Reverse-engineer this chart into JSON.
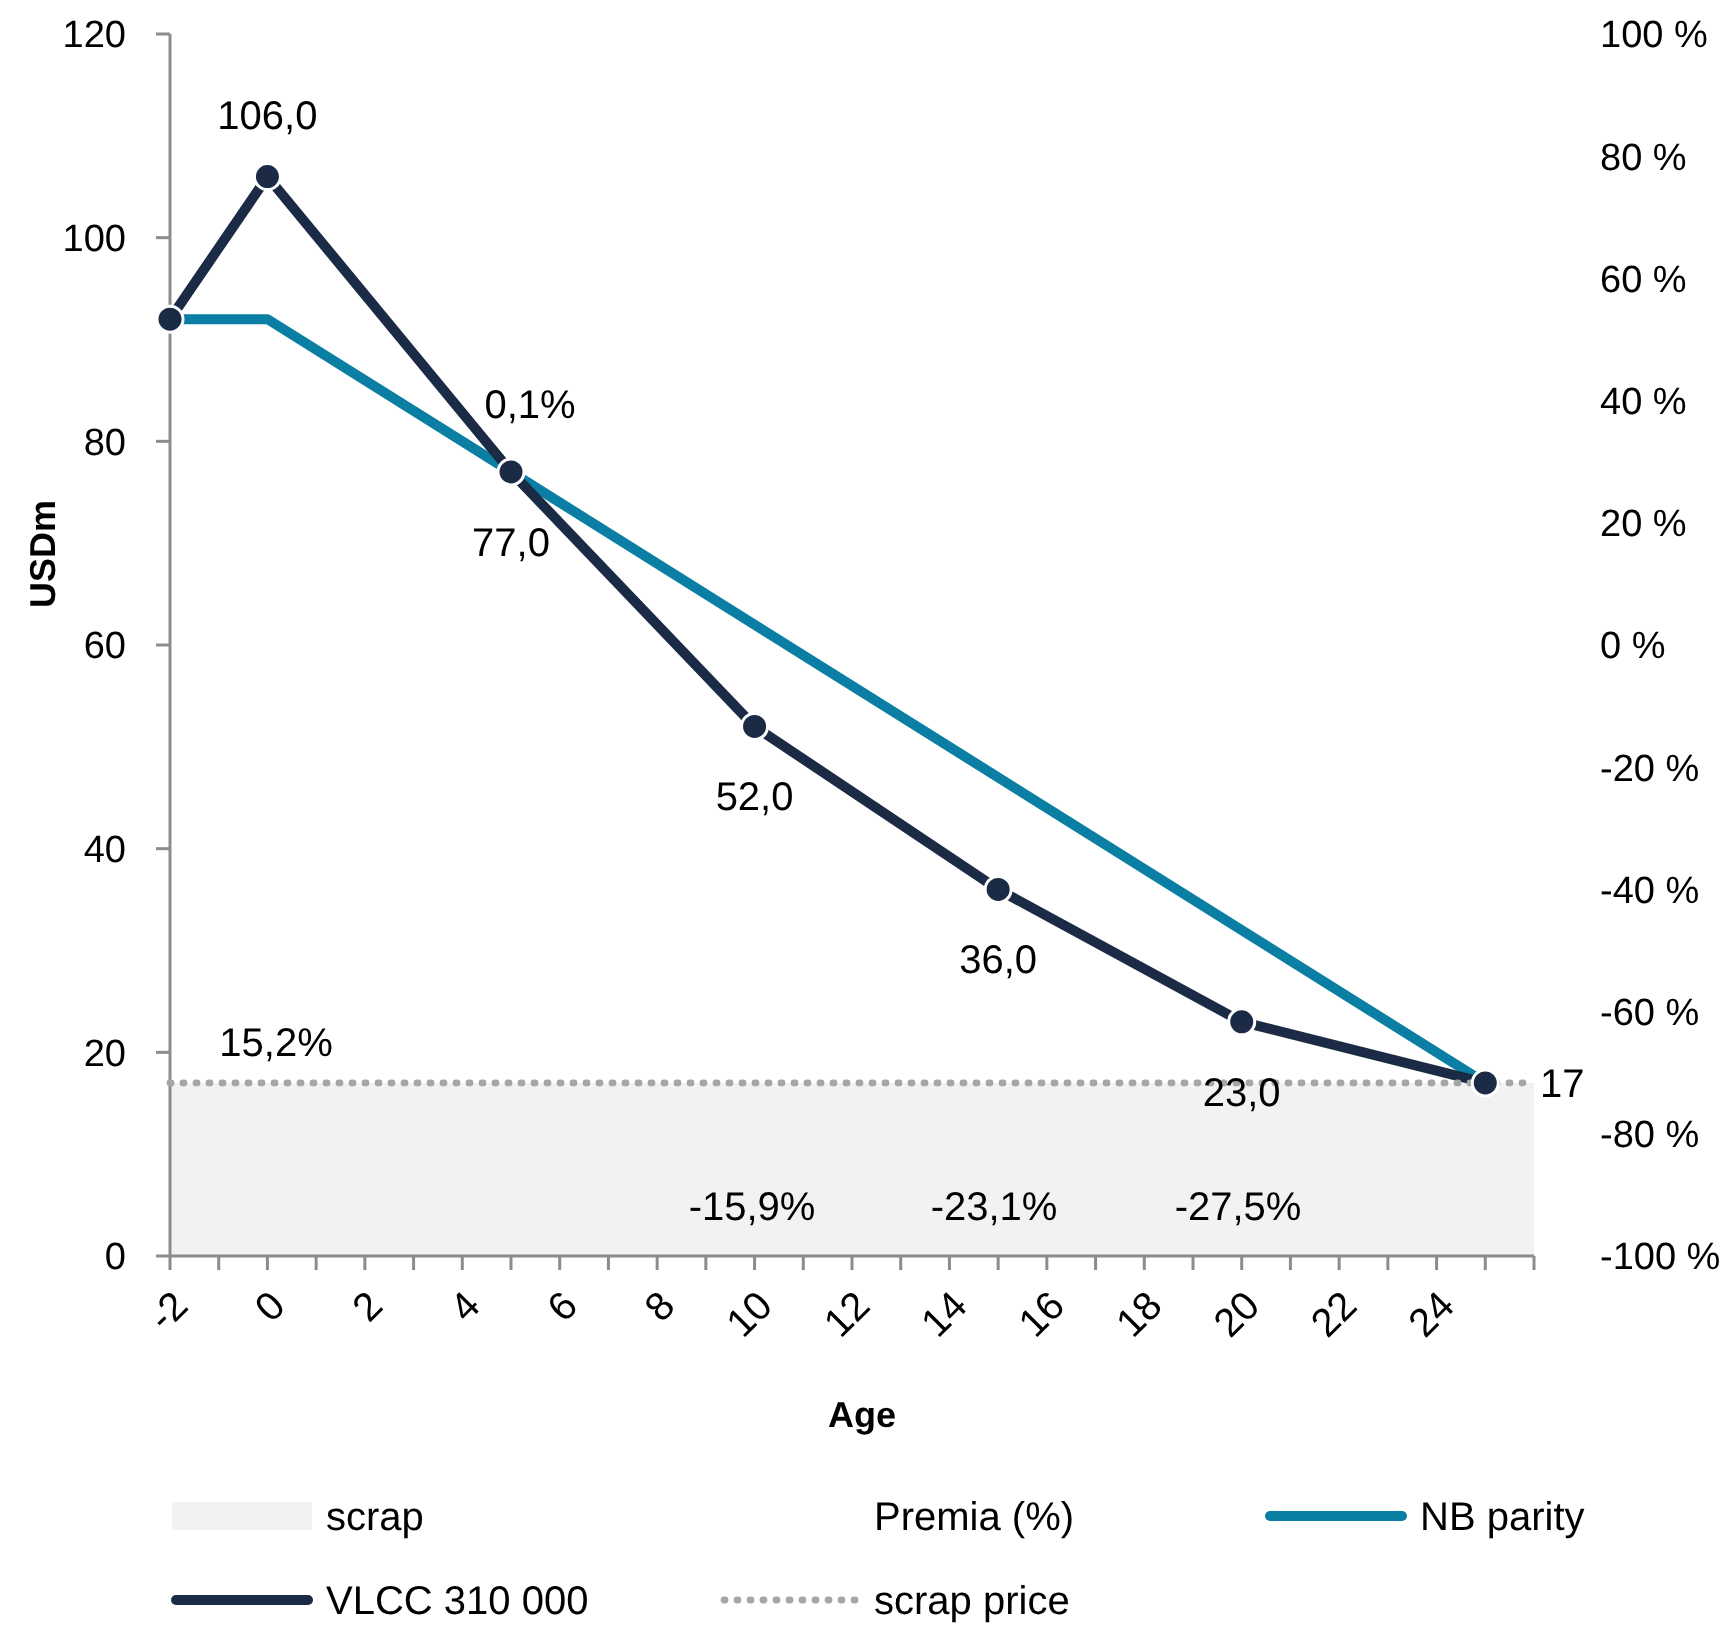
{
  "chart_data": {
    "type": "line",
    "xlabel": "Age",
    "ylabel": "USDm",
    "xlim": [
      -2,
      26
    ],
    "xticks": [
      -2,
      {
        "value": -1,
        "label": null
      },
      0,
      {
        "value": 1,
        "label": null
      },
      2,
      {
        "value": 3,
        "label": null
      },
      4,
      {
        "value": 5,
        "label": null
      },
      6,
      {
        "value": 7,
        "label": null
      },
      8,
      {
        "value": 9,
        "label": null
      },
      10,
      {
        "value": 11,
        "label": null
      },
      12,
      {
        "value": 13,
        "label": null
      },
      14,
      {
        "value": 15,
        "label": null
      },
      16,
      {
        "value": 17,
        "label": null
      },
      18,
      {
        "value": 19,
        "label": null
      },
      20,
      {
        "value": 21,
        "label": null
      },
      22,
      {
        "value": 23,
        "label": null
      },
      24,
      {
        "value": 25,
        "label": null
      },
      {
        "value": 26,
        "label": null
      }
    ],
    "ylim": [
      0,
      120
    ],
    "yticks": [
      0,
      20,
      40,
      60,
      80,
      100,
      120
    ],
    "y2lim": [
      -100,
      100
    ],
    "y2ticks": [
      {
        "value": -100,
        "label": "-100 %"
      },
      {
        "value": -80,
        "label": "-80 %"
      },
      {
        "value": -60,
        "label": "-60 %"
      },
      {
        "value": -40,
        "label": "-40 %"
      },
      {
        "value": -20,
        "label": "-20 %"
      },
      {
        "value": 0,
        "label": "0 %"
      },
      {
        "value": 20,
        "label": "20 %"
      },
      {
        "value": 40,
        "label": "40 %"
      },
      {
        "value": 60,
        "label": "60 %"
      },
      {
        "value": 80,
        "label": "80 %"
      },
      {
        "value": 100,
        "label": "100 %"
      }
    ],
    "bands": [
      {
        "axis": "y",
        "from": 0,
        "to": 17,
        "label": "scrap",
        "color": "#f2f2f2"
      }
    ],
    "series": [
      {
        "name": "NB parity",
        "type": "line",
        "color": "#0b7ea3",
        "x": [
          -2,
          0,
          25
        ],
        "values": [
          92,
          92,
          17
        ],
        "marker": "none",
        "line_style": "solid"
      },
      {
        "name": "VLCC 310 000",
        "type": "line",
        "color": "#1c2b45",
        "x": [
          -2,
          0,
          5,
          10,
          15,
          20,
          25
        ],
        "values": [
          92,
          106,
          77,
          52,
          36,
          23,
          17
        ],
        "marker": "circle",
        "line_style": "solid",
        "value_labels": [
          null,
          "106,0",
          "77,0",
          "52,0",
          "36,0",
          "23,0",
          null
        ]
      },
      {
        "name": "scrap price",
        "type": "line",
        "color": "#a6a6a6",
        "x": [
          -2,
          26
        ],
        "values": [
          17,
          17
        ],
        "marker": "none",
        "line_style": "dotted",
        "value_labels": [
          null,
          "17"
        ]
      }
    ],
    "annotations": [
      "15,2%",
      "0,1%",
      "-15,9%",
      "-23,1%",
      "-27,5%",
      "Premia (%)"
    ],
    "legend": "bottom"
  }
}
